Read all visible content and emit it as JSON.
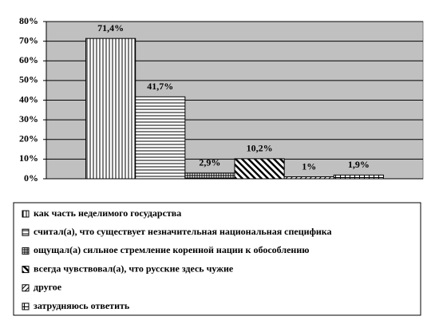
{
  "chart_data": {
    "type": "bar",
    "categories": [
      null
    ],
    "series": [
      {
        "name": "как часть неделимого государства",
        "color": "#ffffff",
        "pattern": "vertical",
        "values": [
          71.4
        ],
        "value_labels": [
          "71,4%"
        ]
      },
      {
        "name": "считал(а), что существует незначительная национальная специфика",
        "color": "#ffffff",
        "pattern": "horizontal",
        "values": [
          41.7
        ],
        "value_labels": [
          "41,7%"
        ]
      },
      {
        "name": "ощущал(а) сильное стремление коренной нации к обособлению",
        "color": "#ffffff",
        "pattern": "fine-grid",
        "values": [
          2.9
        ],
        "value_labels": [
          "2,9%"
        ]
      },
      {
        "name": "всегда чувствовал(а), что русские здесь чужие",
        "color": "#ffffff",
        "pattern": "wide-downward-diagonal",
        "values": [
          10.2
        ],
        "value_labels": [
          "10,2%"
        ]
      },
      {
        "name": "другое",
        "color": "#ffffff",
        "pattern": "upward-diagonal",
        "values": [
          1
        ],
        "value_labels": [
          "1%"
        ]
      },
      {
        "name": "затрудняюсь ответить",
        "color": "#ffffff",
        "pattern": "grid",
        "values": [
          1.9
        ],
        "value_labels": [
          "1,9%"
        ]
      }
    ],
    "ylim": [
      0,
      80
    ],
    "yticks": [
      {
        "value": 0,
        "label": "0%"
      },
      {
        "value": 10,
        "label": "10%"
      },
      {
        "value": 20,
        "label": "20%"
      },
      {
        "value": 30,
        "label": "30%"
      },
      {
        "value": 40,
        "label": "40%"
      },
      {
        "value": 50,
        "label": "50%"
      },
      {
        "value": 60,
        "label": "60%"
      },
      {
        "value": 70,
        "label": "70%"
      },
      {
        "value": 80,
        "label": "80%"
      }
    ],
    "grid": true,
    "plot_background": "#c0c0c0",
    "legend": "bottom"
  }
}
